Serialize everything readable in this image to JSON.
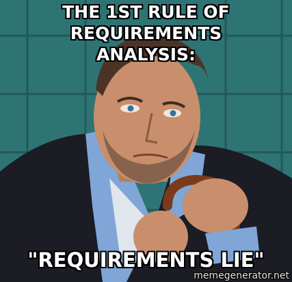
{
  "meme": {
    "top_text_line1": "THE 1ST RULE OF REQUIREMENTS",
    "top_text_line2": "ANALYSIS:",
    "bottom_text": "\"REQUIREMENTS LIE\"",
    "watermark": "memegenerator.net"
  },
  "colors": {
    "wall": "#2f7474",
    "tile_grout": "#1d4f50",
    "jacket": "#1b1c24",
    "shirt": "#7fa6d6",
    "skin": "#c98e6b",
    "cane": "#7a3b1c",
    "caption_text": "#ffffff",
    "caption_stroke": "#000000"
  }
}
